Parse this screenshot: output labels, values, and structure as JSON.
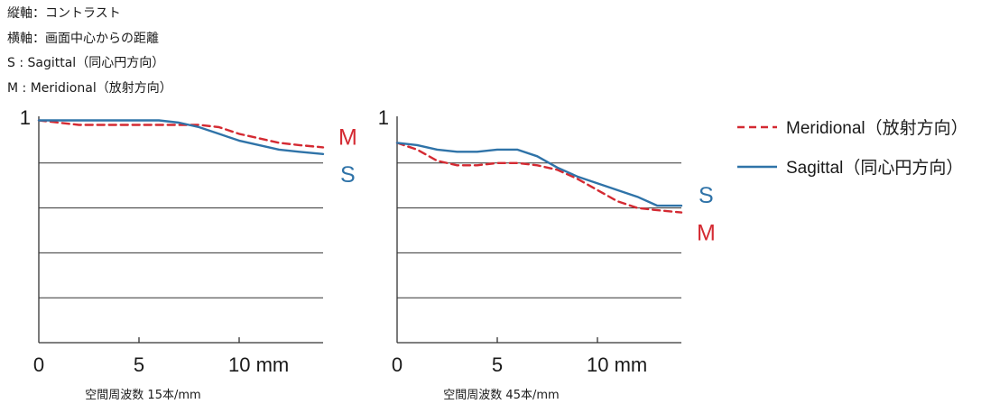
{
  "notes": {
    "vertical_axis": "縦軸：コントラスト",
    "horizontal_axis": "横軸：画面中心からの距離",
    "sagittal": "S : Sagittal（同心円方向）",
    "meridional": "M : Meridional（放射方向）"
  },
  "legend": {
    "meridional": "Meridional（放射方向）",
    "sagittal": "Sagittal（同心円方向）"
  },
  "colors": {
    "meridional": "#d42a32",
    "sagittal": "#2f73a8",
    "grid": "#333333"
  },
  "chart_data": [
    {
      "type": "line",
      "xlabel": "空間周波数 15本/mm",
      "x_tick_labels": [
        "0",
        "5",
        "10 mm"
      ],
      "y_tick_labels": [
        "1"
      ],
      "xlim": [
        0,
        14.2
      ],
      "ylim": [
        0,
        1
      ],
      "grid": "horizontal lines at 0.2 intervals",
      "end_labels": {
        "meridional": "M",
        "sagittal": "S"
      },
      "series": [
        {
          "name": "Meridional（放射方向）",
          "style": "dashed",
          "x": [
            0,
            1,
            2,
            3,
            4,
            5,
            6,
            7,
            8,
            9,
            10,
            11,
            12,
            13,
            14.2
          ],
          "y": [
            0.99,
            0.98,
            0.97,
            0.97,
            0.97,
            0.97,
            0.97,
            0.97,
            0.97,
            0.96,
            0.93,
            0.91,
            0.89,
            0.88,
            0.87
          ]
        },
        {
          "name": "Sagittal（同心円方向）",
          "style": "solid",
          "x": [
            0,
            1,
            2,
            3,
            4,
            5,
            6,
            7,
            8,
            9,
            10,
            11,
            12,
            13,
            14.2
          ],
          "y": [
            0.99,
            0.99,
            0.99,
            0.99,
            0.99,
            0.99,
            0.99,
            0.98,
            0.96,
            0.93,
            0.9,
            0.88,
            0.86,
            0.85,
            0.84
          ]
        }
      ]
    },
    {
      "type": "line",
      "xlabel": "空間周波数 45本/mm",
      "x_tick_labels": [
        "0",
        "5",
        "10 mm"
      ],
      "y_tick_labels": [
        "1"
      ],
      "xlim": [
        0,
        14.2
      ],
      "ylim": [
        0,
        1
      ],
      "grid": "horizontal lines at 0.2 intervals",
      "end_labels": {
        "meridional": "M",
        "sagittal": "S"
      },
      "series": [
        {
          "name": "Meridional（放射方向）",
          "style": "dashed",
          "x": [
            0,
            1,
            2,
            3,
            4,
            5,
            6,
            7,
            8,
            9,
            10,
            11,
            12,
            13,
            14.2
          ],
          "y": [
            0.89,
            0.86,
            0.81,
            0.79,
            0.79,
            0.8,
            0.8,
            0.79,
            0.77,
            0.73,
            0.68,
            0.63,
            0.6,
            0.59,
            0.58
          ]
        },
        {
          "name": "Sagittal（同心円方向）",
          "style": "solid",
          "x": [
            0,
            1,
            2,
            3,
            4,
            5,
            6,
            7,
            8,
            9,
            10,
            11,
            12,
            13,
            14.2
          ],
          "y": [
            0.89,
            0.88,
            0.86,
            0.85,
            0.85,
            0.86,
            0.86,
            0.83,
            0.78,
            0.74,
            0.71,
            0.68,
            0.65,
            0.61,
            0.61
          ]
        }
      ]
    }
  ]
}
